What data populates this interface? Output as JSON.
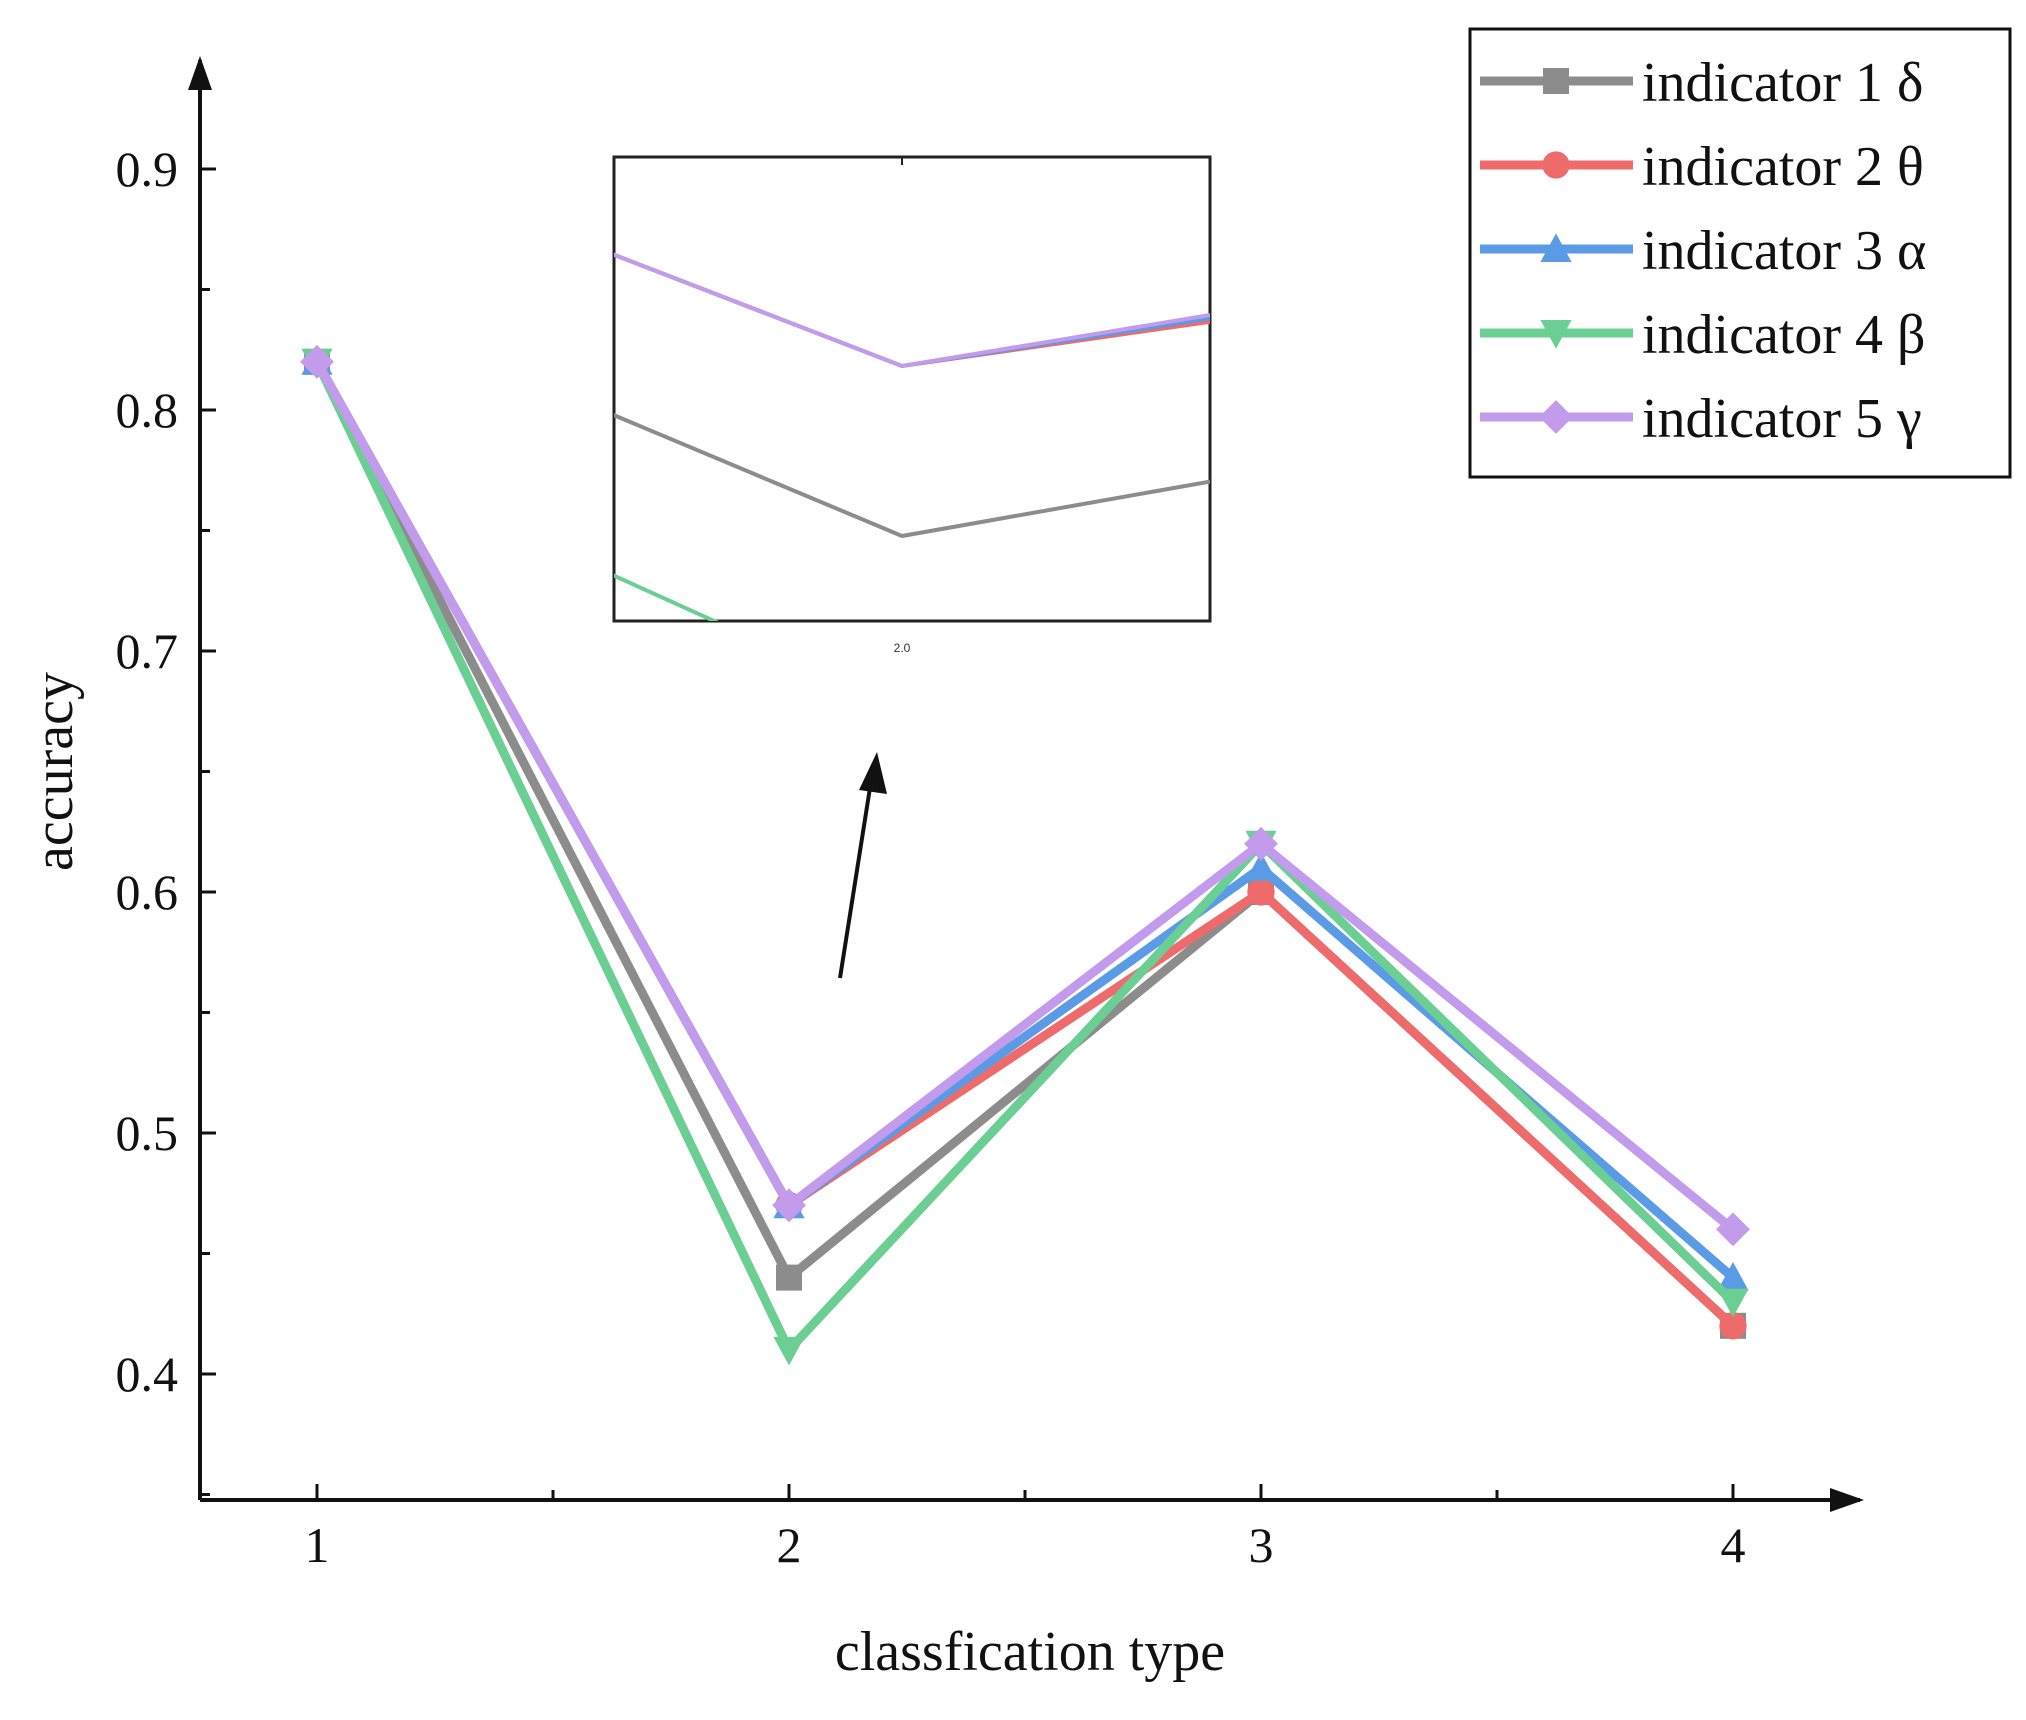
{
  "chart_data": {
    "type": "line",
    "title": "",
    "xlabel": "classfication type",
    "ylabel": "accuracy",
    "x": [
      1,
      2,
      3,
      4
    ],
    "x_ticks": [
      "1",
      "2",
      "3",
      "4"
    ],
    "y_ticks": [
      "0.4",
      "0.5",
      "0.6",
      "0.7",
      "0.8",
      "0.9"
    ],
    "ylim": [
      0.35,
      0.95
    ],
    "xlim": [
      0.75,
      4.25
    ],
    "grid": false,
    "legend_position": "top-right",
    "series": [
      {
        "name": "indicator 1 δ",
        "values": [
          0.82,
          0.44,
          0.6,
          0.42
        ],
        "color": "#8c8c8c",
        "marker": "square"
      },
      {
        "name": "indicator 2 θ",
        "values": [
          0.82,
          0.47,
          0.6,
          0.42
        ],
        "color": "#ee6b6b",
        "marker": "circle"
      },
      {
        "name": "indicator 3 α",
        "values": [
          0.82,
          0.47,
          0.61,
          0.44
        ],
        "color": "#5b9be6",
        "marker": "triangle-up"
      },
      {
        "name": "indicator 4 β",
        "values": [
          0.82,
          0.41,
          0.62,
          0.43
        ],
        "color": "#6bcf94",
        "marker": "triangle-down"
      },
      {
        "name": "indicator 5 γ",
        "values": [
          0.82,
          0.47,
          0.62,
          0.46
        ],
        "color": "#c39bec",
        "marker": "diamond"
      }
    ],
    "inset": {
      "description_shown": "zoomed view around x = 2",
      "x_tick_label": "2.0"
    }
  }
}
